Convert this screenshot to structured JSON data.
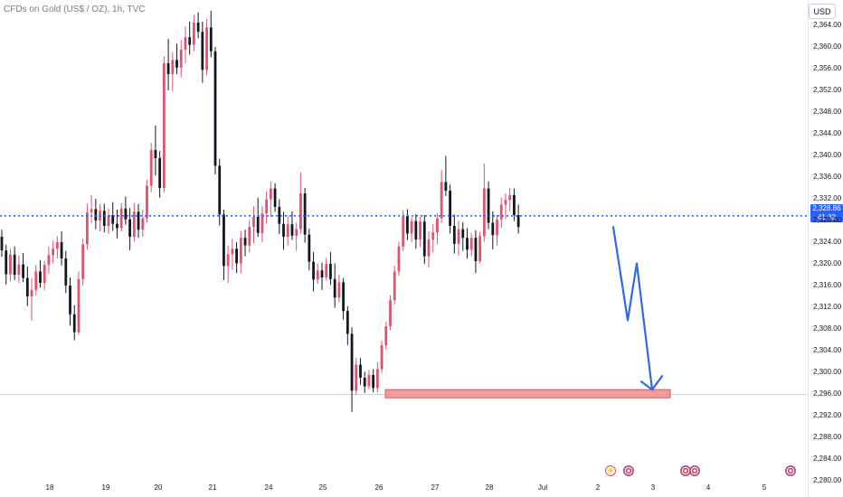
{
  "title": "CFDs on Gold (US$ / OZ), 1h, TVC",
  "currency_button": "USD",
  "price_tag": {
    "price": "2,328.86",
    "countdown": "41:32"
  },
  "colors": {
    "up": "#e0536f",
    "down": "#131722",
    "price_line": "#2962ff",
    "arrow": "#2e6ae6",
    "zone": "#f28b8b",
    "zone_border": "#d9534f"
  },
  "events": [
    {
      "icon": "lightning-icon",
      "kind": "lightning"
    },
    {
      "icon": "us-flag-icon",
      "kind": "flag"
    },
    {
      "icon": "us-flag-icon",
      "kind": "flag"
    },
    {
      "icon": "us-flag-icon",
      "kind": "flag"
    },
    {
      "icon": "us-flag-icon",
      "kind": "flag"
    }
  ],
  "chart_data": {
    "type": "candlestick",
    "symbol": "CFDs on Gold (US$ / OZ)",
    "interval": "1h",
    "source": "TVC",
    "ylim": [
      2278,
      2368
    ],
    "y_ticks": [
      "2,364.00",
      "2,360.00",
      "2,356.00",
      "2,352.00",
      "2,348.00",
      "2,344.00",
      "2,340.00",
      "2,336.00",
      "2,332.00",
      "2,328.00",
      "2,324.00",
      "2,320.00",
      "2,316.00",
      "2,312.00",
      "2,308.00",
      "2,304.00",
      "2,300.00",
      "2,296.00",
      "2,292.00",
      "2,288.00",
      "2,284.00",
      "2,280.00"
    ],
    "x_ticks": [
      "18",
      "19",
      "20",
      "21",
      "24",
      "25",
      "26",
      "27",
      "28",
      "Jul",
      "2",
      "3",
      "4",
      "5"
    ],
    "current_price": 2328.86,
    "support_zone": [
      2295.3,
      2296.8
    ],
    "projection_path": [
      2326.8,
      2309.6,
      2320.1,
      2296.8
    ],
    "ohlc": [
      [
        2325.0,
        2326.3,
        2321.3,
        2322.5
      ],
      [
        2322.5,
        2323.5,
        2316.2,
        2318.1
      ],
      [
        2318.1,
        2322.8,
        2316.8,
        2321.7
      ],
      [
        2321.7,
        2323.2,
        2317.0,
        2318.0
      ],
      [
        2318.0,
        2321.6,
        2316.5,
        2319.9
      ],
      [
        2319.9,
        2322.0,
        2316.6,
        2317.4
      ],
      [
        2317.4,
        2319.5,
        2312.2,
        2314.0
      ],
      [
        2314.0,
        2317.3,
        2309.5,
        2315.2
      ],
      [
        2315.2,
        2319.8,
        2314.2,
        2318.6
      ],
      [
        2318.6,
        2320.7,
        2315.6,
        2316.5
      ],
      [
        2316.5,
        2320.5,
        2315.1,
        2319.8
      ],
      [
        2319.8,
        2323.2,
        2318.2,
        2321.6
      ],
      [
        2321.6,
        2324.3,
        2320.1,
        2322.8
      ],
      [
        2322.8,
        2325.1,
        2321.0,
        2324.0
      ],
      [
        2324.0,
        2326.0,
        2319.7,
        2321.0
      ],
      [
        2321.0,
        2322.4,
        2314.6,
        2316.0
      ],
      [
        2316.0,
        2317.5,
        2308.6,
        2310.7
      ],
      [
        2310.7,
        2312.4,
        2305.9,
        2307.4
      ],
      [
        2307.4,
        2318.6,
        2306.9,
        2317.2
      ],
      [
        2317.2,
        2324.7,
        2316.0,
        2323.6
      ],
      [
        2323.6,
        2331.1,
        2322.6,
        2329.5
      ],
      [
        2329.5,
        2332.7,
        2327.5,
        2330.1
      ],
      [
        2330.1,
        2332.0,
        2326.4,
        2328.0
      ],
      [
        2328.0,
        2331.0,
        2326.0,
        2329.8
      ],
      [
        2329.8,
        2331.1,
        2325.8,
        2327.0
      ],
      [
        2327.0,
        2330.2,
        2325.5,
        2329.0
      ],
      [
        2329.0,
        2331.4,
        2326.1,
        2327.4
      ],
      [
        2327.4,
        2330.0,
        2324.7,
        2326.6
      ],
      [
        2326.6,
        2331.2,
        2326.0,
        2330.2
      ],
      [
        2330.2,
        2332.4,
        2327.2,
        2328.2
      ],
      [
        2328.2,
        2330.3,
        2322.5,
        2325.0
      ],
      [
        2325.0,
        2331.2,
        2324.1,
        2329.6
      ],
      [
        2329.6,
        2331.0,
        2324.8,
        2326.3
      ],
      [
        2326.3,
        2330.0,
        2325.0,
        2328.4
      ],
      [
        2328.4,
        2335.5,
        2327.6,
        2334.4
      ],
      [
        2334.4,
        2342.3,
        2333.2,
        2341.0
      ],
      [
        2341.0,
        2345.5,
        2336.3,
        2339.5
      ],
      [
        2339.5,
        2340.8,
        2332.2,
        2334.0
      ],
      [
        2334.0,
        2358.3,
        2333.1,
        2357.0
      ],
      [
        2357.0,
        2361.5,
        2352.0,
        2355.0
      ],
      [
        2355.0,
        2359.0,
        2351.8,
        2357.6
      ],
      [
        2357.6,
        2360.6,
        2355.0,
        2356.2
      ],
      [
        2356.2,
        2361.3,
        2354.4,
        2359.5
      ],
      [
        2359.5,
        2363.8,
        2357.0,
        2361.8
      ],
      [
        2361.8,
        2364.7,
        2358.6,
        2360.4
      ],
      [
        2360.4,
        2365.9,
        2359.2,
        2364.5
      ],
      [
        2364.5,
        2366.4,
        2361.6,
        2362.8
      ],
      [
        2362.8,
        2364.7,
        2353.4,
        2355.8
      ],
      [
        2355.8,
        2365.2,
        2354.8,
        2363.6
      ],
      [
        2363.6,
        2366.7,
        2358.1,
        2359.2
      ],
      [
        2359.2,
        2360.0,
        2336.5,
        2338.1
      ],
      [
        2338.1,
        2339.4,
        2327.1,
        2329.1
      ],
      [
        2329.1,
        2330.0,
        2317.0,
        2319.6
      ],
      [
        2319.6,
        2323.4,
        2316.5,
        2321.8
      ],
      [
        2321.8,
        2324.6,
        2318.9,
        2322.8
      ],
      [
        2322.8,
        2324.0,
        2318.3,
        2320.1
      ],
      [
        2320.1,
        2326.1,
        2318.3,
        2324.8
      ],
      [
        2324.8,
        2326.3,
        2321.4,
        2323.4
      ],
      [
        2323.4,
        2328.0,
        2322.1,
        2326.8
      ],
      [
        2326.8,
        2330.6,
        2323.8,
        2328.7
      ],
      [
        2328.7,
        2332.2,
        2325.0,
        2325.7
      ],
      [
        2325.7,
        2330.6,
        2324.0,
        2329.3
      ],
      [
        2329.3,
        2333.4,
        2327.5,
        2331.9
      ],
      [
        2331.9,
        2335.2,
        2328.6,
        2333.9
      ],
      [
        2333.9,
        2334.9,
        2329.6,
        2330.5
      ],
      [
        2330.5,
        2331.9,
        2325.5,
        2327.4
      ],
      [
        2327.4,
        2329.6,
        2322.6,
        2325.0
      ],
      [
        2325.0,
        2328.9,
        2323.4,
        2327.3
      ],
      [
        2327.3,
        2329.7,
        2324.4,
        2325.2
      ],
      [
        2325.2,
        2327.6,
        2322.4,
        2326.4
      ],
      [
        2326.4,
        2336.9,
        2325.6,
        2333.0
      ],
      [
        2333.0,
        2334.0,
        2323.9,
        2325.4
      ],
      [
        2325.4,
        2326.5,
        2318.8,
        2320.4
      ],
      [
        2320.4,
        2322.2,
        2314.9,
        2317.1
      ],
      [
        2317.1,
        2320.1,
        2316.3,
        2318.8
      ],
      [
        2318.8,
        2320.2,
        2315.2,
        2317.5
      ],
      [
        2317.5,
        2321.1,
        2316.9,
        2320.0
      ],
      [
        2320.0,
        2322.2,
        2316.1,
        2317.2
      ],
      [
        2317.2,
        2320.1,
        2311.9,
        2313.8
      ],
      [
        2313.8,
        2318.0,
        2313.0,
        2316.6
      ],
      [
        2316.6,
        2317.4,
        2309.7,
        2311.3
      ],
      [
        2311.3,
        2312.2,
        2305.0,
        2307.1
      ],
      [
        2307.1,
        2308.3,
        2292.7,
        2296.6
      ],
      [
        2296.6,
        2302.7,
        2295.8,
        2301.4
      ],
      [
        2301.4,
        2302.6,
        2297.7,
        2299.0
      ],
      [
        2299.0,
        2300.1,
        2296.2,
        2297.4
      ],
      [
        2297.4,
        2300.4,
        2296.9,
        2299.5
      ],
      [
        2299.5,
        2300.6,
        2296.3,
        2297.1
      ],
      [
        2297.1,
        2301.8,
        2296.3,
        2300.6
      ],
      [
        2300.6,
        2305.8,
        2299.9,
        2305.0
      ],
      [
        2305.0,
        2309.3,
        2304.2,
        2308.5
      ],
      [
        2308.5,
        2314.2,
        2307.8,
        2313.3
      ],
      [
        2313.3,
        2319.6,
        2312.5,
        2318.6
      ],
      [
        2318.6,
        2324.1,
        2317.8,
        2323.2
      ],
      [
        2323.2,
        2329.9,
        2322.4,
        2328.8
      ],
      [
        2328.8,
        2330.1,
        2324.4,
        2325.6
      ],
      [
        2325.6,
        2328.6,
        2324.0,
        2327.9
      ],
      [
        2327.9,
        2329.2,
        2322.8,
        2324.5
      ],
      [
        2324.5,
        2328.7,
        2323.1,
        2327.8
      ],
      [
        2327.8,
        2329.0,
        2320.0,
        2321.4
      ],
      [
        2321.4,
        2326.0,
        2319.3,
        2324.5
      ],
      [
        2324.5,
        2327.3,
        2322.2,
        2325.8
      ],
      [
        2325.8,
        2329.3,
        2323.6,
        2328.4
      ],
      [
        2328.4,
        2337.3,
        2327.5,
        2335.1
      ],
      [
        2335.1,
        2339.9,
        2332.5,
        2333.5
      ],
      [
        2333.5,
        2334.6,
        2325.6,
        2327.0
      ],
      [
        2327.0,
        2329.1,
        2321.9,
        2323.7
      ],
      [
        2323.7,
        2328.0,
        2321.5,
        2326.4
      ],
      [
        2326.4,
        2327.7,
        2322.4,
        2324.8
      ],
      [
        2324.8,
        2326.6,
        2321.0,
        2322.6
      ],
      [
        2322.6,
        2325.7,
        2321.4,
        2324.8
      ],
      [
        2324.8,
        2326.2,
        2318.3,
        2320.5
      ],
      [
        2320.5,
        2325.9,
        2320.0,
        2325.1
      ],
      [
        2325.1,
        2338.5,
        2324.1,
        2333.9
      ],
      [
        2333.9,
        2335.2,
        2326.4,
        2327.6
      ],
      [
        2327.6,
        2329.7,
        2322.7,
        2325.3
      ],
      [
        2325.3,
        2329.0,
        2323.4,
        2328.2
      ],
      [
        2328.2,
        2332.2,
        2326.7,
        2330.9
      ],
      [
        2330.9,
        2333.0,
        2328.3,
        2331.8
      ],
      [
        2331.8,
        2334.0,
        2329.7,
        2332.7
      ],
      [
        2332.7,
        2333.9,
        2327.9,
        2329.0
      ],
      [
        2329.0,
        2330.9,
        2325.6,
        2326.8
      ]
    ]
  }
}
